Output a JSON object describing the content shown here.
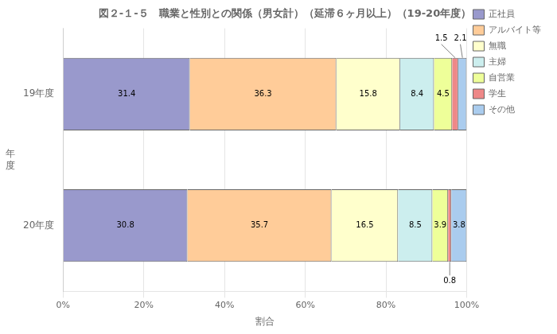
{
  "chart_data": {
    "type": "bar",
    "orientation": "horizontal",
    "stacked": true,
    "title": "図２-１-５　職業と性別との関係（男女計）（延滞６ヶ月以上）（19-20年度）",
    "xlabel": "割合",
    "ylabel": "年\n度",
    "categories": [
      "19年度",
      "20年度"
    ],
    "series": [
      {
        "name": "正社員",
        "color": "#9999cc",
        "values": [
          31.4,
          30.8
        ]
      },
      {
        "name": "アルバイト等",
        "color": "#ffcc99",
        "values": [
          36.3,
          35.7
        ]
      },
      {
        "name": "無職",
        "color": "#ffffcc",
        "values": [
          15.8,
          16.5
        ]
      },
      {
        "name": "主婦",
        "color": "#cceeee",
        "values": [
          8.4,
          8.5
        ]
      },
      {
        "name": "自営業",
        "color": "#eeff99",
        "values": [
          4.5,
          3.9
        ]
      },
      {
        "name": "学生",
        "color": "#ee8888",
        "values": [
          1.5,
          0.8
        ]
      },
      {
        "name": "その他",
        "color": "#aaccee",
        "values": [
          2.1,
          3.8
        ]
      }
    ],
    "xlim": [
      0,
      100
    ],
    "xticks": [
      {
        "value": 0,
        "label": "0%"
      },
      {
        "value": 20,
        "label": "20%"
      },
      {
        "value": 40,
        "label": "40%"
      },
      {
        "value": 60,
        "label": "60%"
      },
      {
        "value": 80,
        "label": "80%"
      },
      {
        "value": 100,
        "label": "100%"
      }
    ],
    "grid": true,
    "legend": "right",
    "data_labels": true
  }
}
